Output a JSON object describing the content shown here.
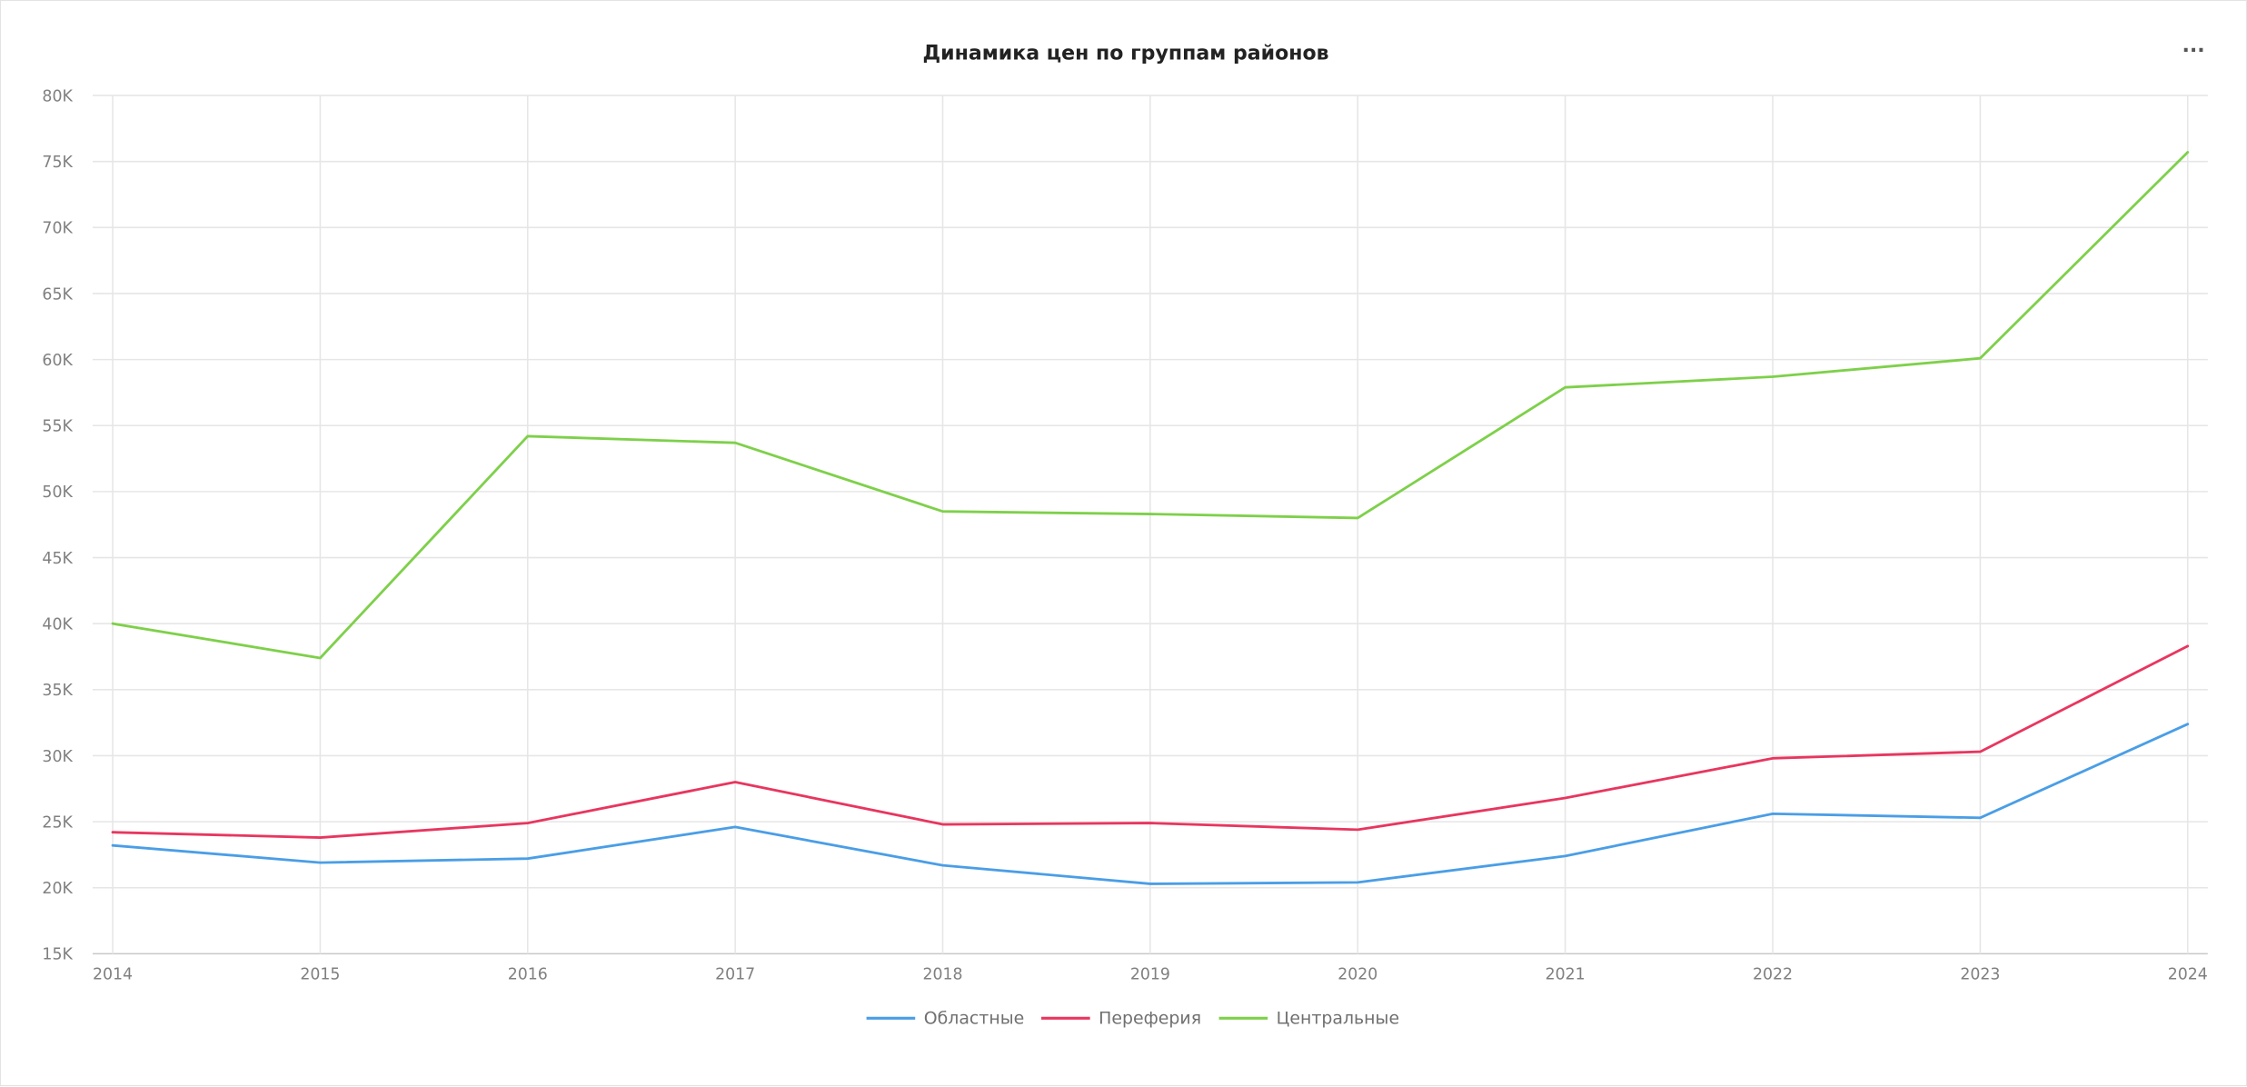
{
  "chart_data": {
    "type": "line",
    "title": "Динамика цен по группам районов",
    "xlabel": "",
    "ylabel": "",
    "ylim": [
      15000,
      80000
    ],
    "x": [
      "2014",
      "2015",
      "2016",
      "2017",
      "2018",
      "2019",
      "2020",
      "2021",
      "2022",
      "2023",
      "2024"
    ],
    "y_ticks": [
      "15K",
      "20K",
      "25K",
      "30K",
      "35K",
      "40K",
      "45K",
      "50K",
      "55K",
      "60K",
      "65K",
      "70K",
      "75K",
      "80K"
    ],
    "grid": true,
    "legend": "bottom",
    "series": [
      {
        "name": "Областные",
        "color": "#4a9ee6",
        "values": [
          23200,
          21900,
          22200,
          24600,
          21700,
          20300,
          20400,
          22400,
          25600,
          25300,
          32400
        ]
      },
      {
        "name": "Переферия",
        "color": "#e8365f",
        "values": [
          24200,
          23800,
          24900,
          28000,
          24800,
          24900,
          24400,
          26800,
          29800,
          30300,
          38300
        ]
      },
      {
        "name": "Центральные",
        "color": "#7ed04a",
        "values": [
          40000,
          37400,
          54200,
          53700,
          48500,
          48300,
          48000,
          57900,
          58700,
          60100,
          75700
        ]
      }
    ]
  },
  "menu": {
    "icon": "more-icon",
    "label": "···"
  }
}
